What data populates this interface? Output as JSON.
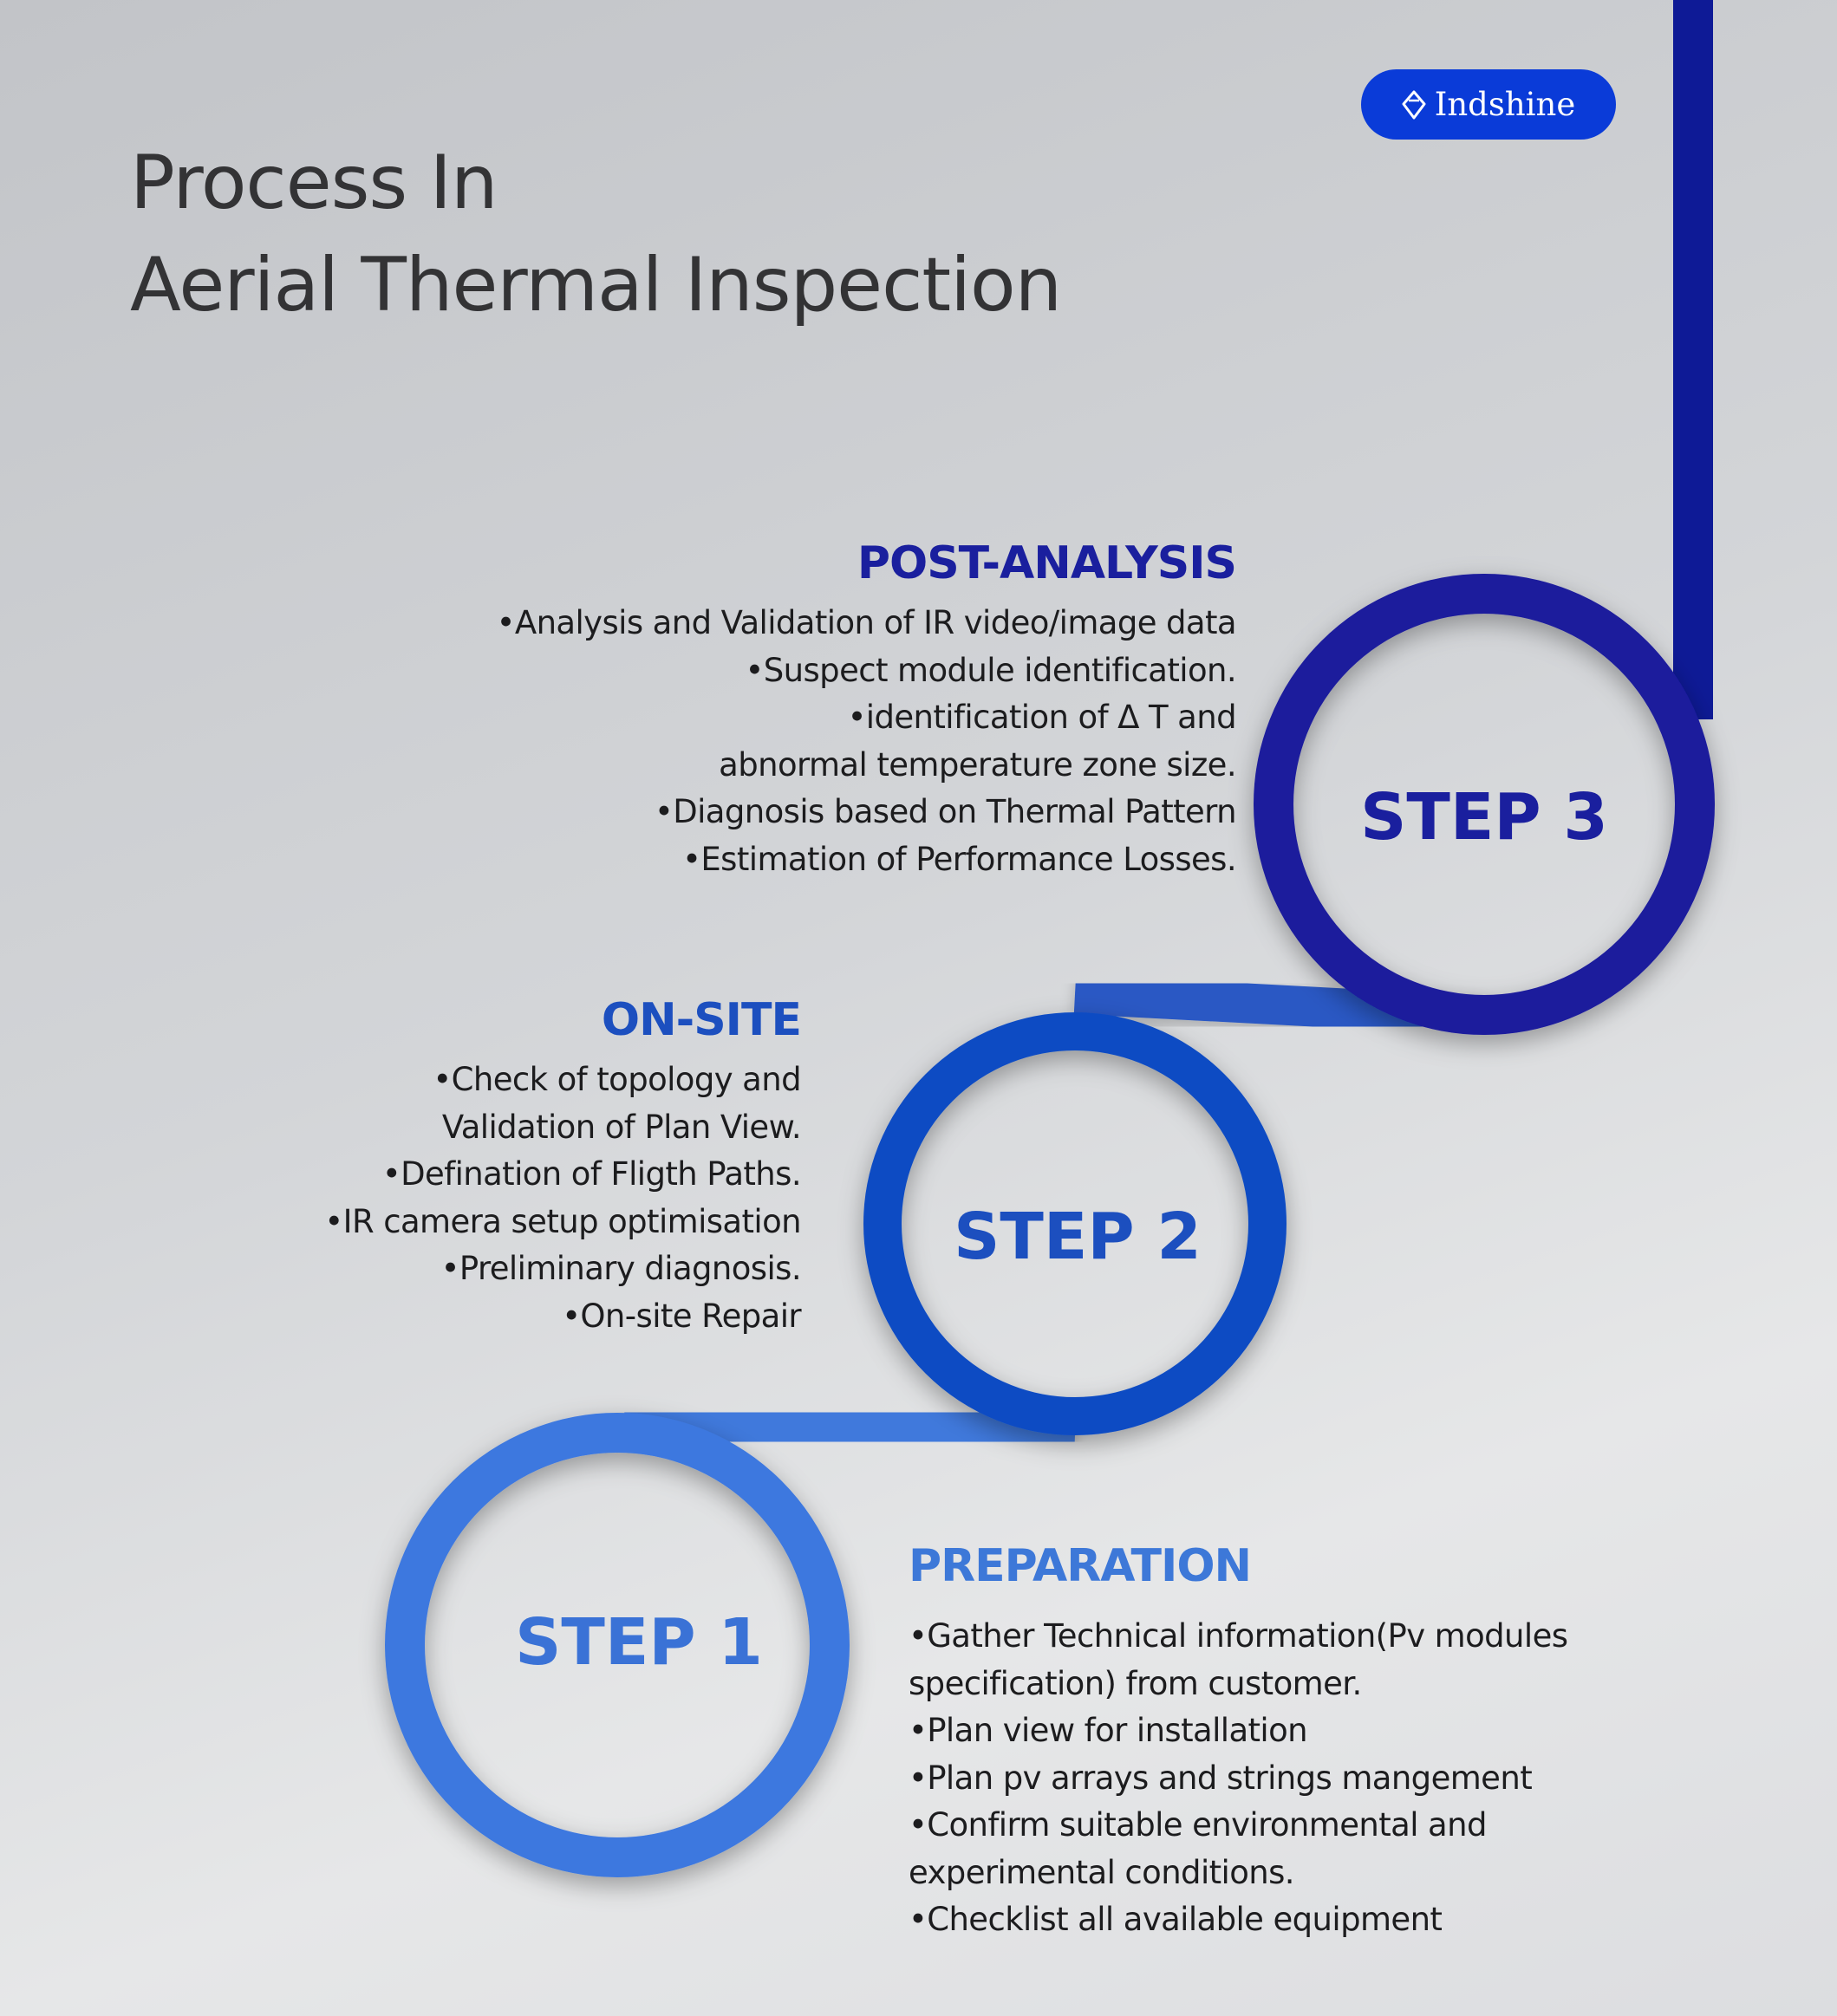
{
  "title": {
    "line1": "Process In",
    "line2": "Aerial Thermal Inspection"
  },
  "brand": {
    "name": "Indshine",
    "icon": "diamond-gem-icon",
    "color": "#0a3bd8"
  },
  "steps": [
    {
      "label": "STEP 1",
      "heading": "PREPARATION",
      "color": "#3d78df",
      "items": [
        "•Gather Technical information(Pv modules",
        "specification) from customer.",
        "•Plan view for installation",
        "•Plan pv arrays and strings mangement",
        "•Confirm suitable environmental  and",
        "experimental conditions.",
        "•Checklist all available equipment"
      ]
    },
    {
      "label": "STEP 2",
      "heading": "ON-SITE",
      "color": "#0e4cc3",
      "items": [
        "•Check of topology and",
        "Validation of Plan View.",
        "•Defination of Fligth Paths.",
        "•IR camera setup optimisation",
        "•Preliminary diagnosis.",
        "•On-site Repair"
      ]
    },
    {
      "label": "STEP 3",
      "heading": "POST-ANALYSIS",
      "color": "#1a1a9c",
      "items": [
        "•Analysis and Validation of IR video/image data",
        "•Suspect module identification.",
        "•identification of   Δ T and",
        "abnormal temperature zone size.",
        "•Diagnosis based on Thermal Pattern",
        "•Estimation of Performance Losses."
      ]
    }
  ]
}
